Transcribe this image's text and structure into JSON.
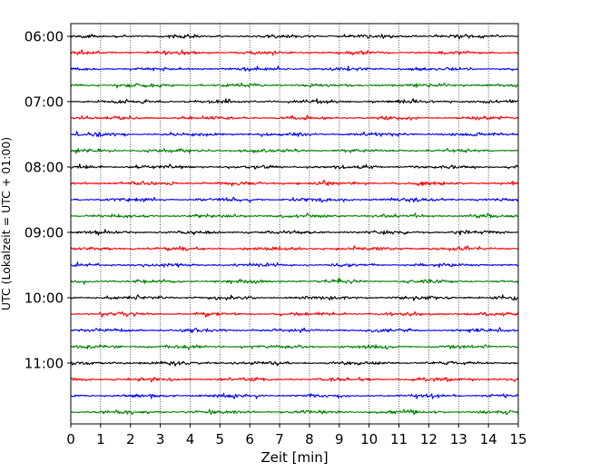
{
  "chart_data": {
    "type": "line",
    "subtype": "helicorder",
    "xlabel": "Zeit  [min]",
    "ylabel": "UTC (Lokalzeit = UTC + 01:00)",
    "xlim": [
      0,
      15
    ],
    "x_ticks": [
      0,
      1,
      2,
      3,
      4,
      5,
      6,
      7,
      8,
      9,
      10,
      11,
      12,
      13,
      14,
      15
    ],
    "x_tick_labels": [
      "0",
      "1",
      "2",
      "3",
      "4",
      "5",
      "6",
      "7",
      "8",
      "9",
      "10",
      "11",
      "12",
      "13",
      "14",
      "15"
    ],
    "y_tick_labels": [
      "06:00",
      "07:00",
      "08:00",
      "09:00",
      "10:00",
      "11:00"
    ],
    "x_grid": "dotted",
    "trace_minutes_per_line": 15,
    "trace_start": "06:00",
    "trace_end": "12:00",
    "trace_count": 24,
    "trace_colors": [
      "#000000",
      "#ff0000",
      "#0000ff",
      "#008000"
    ]
  }
}
